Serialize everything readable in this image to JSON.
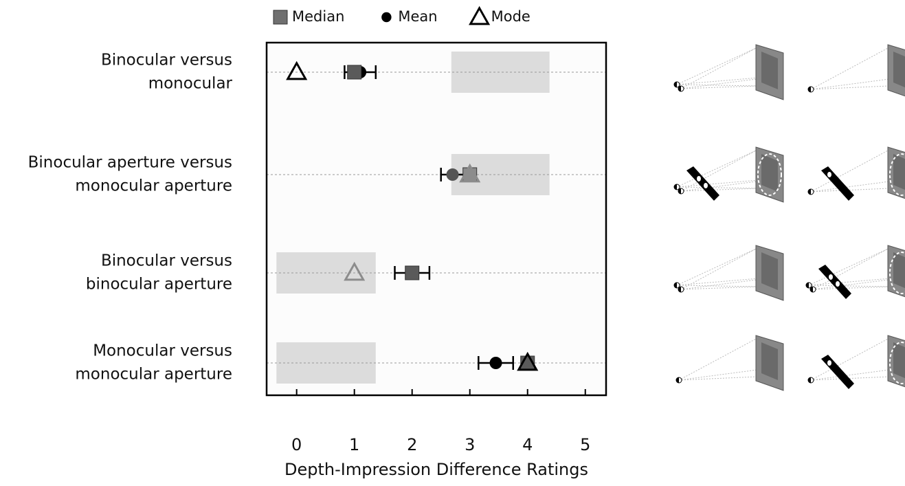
{
  "chart_data": {
    "type": "dot",
    "categories": [
      [
        "Binocular versus",
        "monocular"
      ],
      [
        "Binocular aperture versus",
        "monocular aperture"
      ],
      [
        "Binocular versus",
        "binocular aperture"
      ],
      [
        "Monocular versus",
        "monocular aperture"
      ]
    ],
    "series": [
      {
        "name": "Median",
        "marker": "square",
        "color": "#707070",
        "colors": [
          "#5a5a5a",
          "#8c8c8c",
          "#5a5a5a",
          "#5a5a5a"
        ],
        "values": [
          1,
          3,
          2,
          4
        ]
      },
      {
        "name": "Mean",
        "marker": "circle",
        "color": "#000000",
        "colors": [
          "#000000",
          "#555555",
          "#000000",
          "#000000"
        ],
        "values": [
          1.1,
          2.7,
          2,
          3.45
        ],
        "errors": [
          0.27,
          0.2,
          0.3,
          0.3
        ]
      },
      {
        "name": "Mode",
        "marker": "triangle",
        "color": "#000000",
        "colors": [
          "#000000",
          "#8c8c8c",
          "#8c8c8c",
          "#000000"
        ],
        "values": [
          0,
          3,
          1,
          4
        ]
      }
    ],
    "shaded_ranges": [
      [
        2.68,
        4.38
      ],
      [
        2.68,
        4.38
      ],
      [
        -0.35,
        1.37
      ],
      [
        -0.35,
        1.37
      ]
    ],
    "shade_color": "#dcdcdc",
    "xlabel": "Depth-Impression Difference Ratings",
    "xlim": [
      -0.52,
      5.36
    ],
    "xticks": [
      0,
      1,
      2,
      3,
      4,
      5
    ]
  }
}
